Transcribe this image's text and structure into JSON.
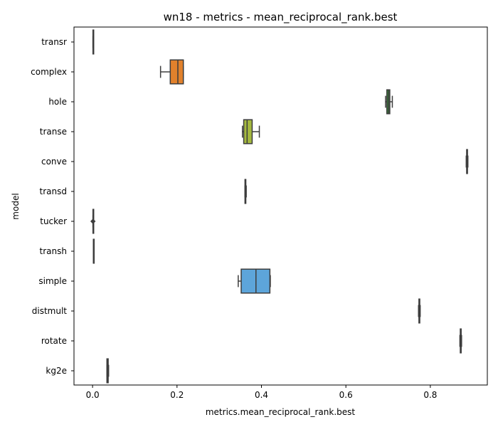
{
  "chart_data": {
    "type": "box",
    "orientation": "horizontal",
    "title": "wn18 - metrics - mean_reciprocal_rank.best",
    "xlabel": "metrics.mean_reciprocal_rank.best",
    "ylabel": "model",
    "xlim": [
      -0.044,
      0.935
    ],
    "xticks": [
      {
        "value": 0.0,
        "label": "0.0"
      },
      {
        "value": 0.2,
        "label": "0.2"
      },
      {
        "value": 0.4,
        "label": "0.4"
      },
      {
        "value": 0.6,
        "label": "0.6"
      },
      {
        "value": 0.8,
        "label": "0.8"
      }
    ],
    "grid": false,
    "legend": "none",
    "categories": [
      "transr",
      "complex",
      "hole",
      "transe",
      "conve",
      "transd",
      "tucker",
      "transh",
      "simple",
      "distmult",
      "rotate",
      "kg2e"
    ],
    "boxes": [
      {
        "model": "transr",
        "color": "#3274a1",
        "whisker_low": 0.001,
        "q1": 0.001,
        "median": 0.001,
        "q3": 0.001,
        "whisker_high": 0.001,
        "outliers": []
      },
      {
        "model": "complex",
        "color": "#e1812c",
        "whisker_low": 0.161,
        "q1": 0.184,
        "median": 0.202,
        "q3": 0.215,
        "whisker_high": 0.215,
        "outliers": []
      },
      {
        "model": "hole",
        "color": "#3a923a",
        "whisker_low": 0.694,
        "q1": 0.697,
        "median": 0.701,
        "q3": 0.704,
        "whisker_high": 0.71,
        "outliers": []
      },
      {
        "model": "transe",
        "color": "#a5b93f",
        "whisker_low": 0.355,
        "q1": 0.358,
        "median": 0.366,
        "q3": 0.378,
        "whisker_high": 0.395,
        "outliers": []
      },
      {
        "model": "conve",
        "color": "#9372b2",
        "whisker_low": 0.885,
        "q1": 0.886,
        "median": 0.887,
        "q3": 0.888,
        "whisker_high": 0.889,
        "outliers": []
      },
      {
        "model": "transd",
        "color": "#845b53",
        "whisker_low": 0.361,
        "q1": 0.361,
        "median": 0.362,
        "q3": 0.363,
        "whisker_high": 0.364,
        "outliers": []
      },
      {
        "model": "tucker",
        "color": "#d684bd",
        "whisker_low": 0.001,
        "q1": 0.001,
        "median": 0.001,
        "q3": 0.001,
        "whisker_high": 0.001,
        "outliers": [
          0.001
        ]
      },
      {
        "model": "transh",
        "color": "#7f7f7f",
        "whisker_low": 0.002,
        "q1": 0.002,
        "median": 0.002,
        "q3": 0.002,
        "whisker_high": 0.002,
        "outliers": []
      },
      {
        "model": "simple",
        "color": "#5da5da",
        "whisker_low": 0.345,
        "q1": 0.352,
        "median": 0.387,
        "q3": 0.42,
        "whisker_high": 0.421,
        "outliers": []
      },
      {
        "model": "distmult",
        "color": "#c4a484",
        "whisker_low": 0.772,
        "q1": 0.773,
        "median": 0.774,
        "q3": 0.775,
        "whisker_high": 0.776,
        "outliers": []
      },
      {
        "model": "rotate",
        "color": "#a9b5c4",
        "whisker_low": 0.87,
        "q1": 0.871,
        "median": 0.872,
        "q3": 0.873,
        "whisker_high": 0.874,
        "outliers": []
      },
      {
        "model": "kg2e",
        "color": "#e6c8a0",
        "whisker_low": 0.034,
        "q1": 0.034,
        "median": 0.036,
        "q3": 0.037,
        "whisker_high": 0.038,
        "outliers": []
      }
    ]
  }
}
